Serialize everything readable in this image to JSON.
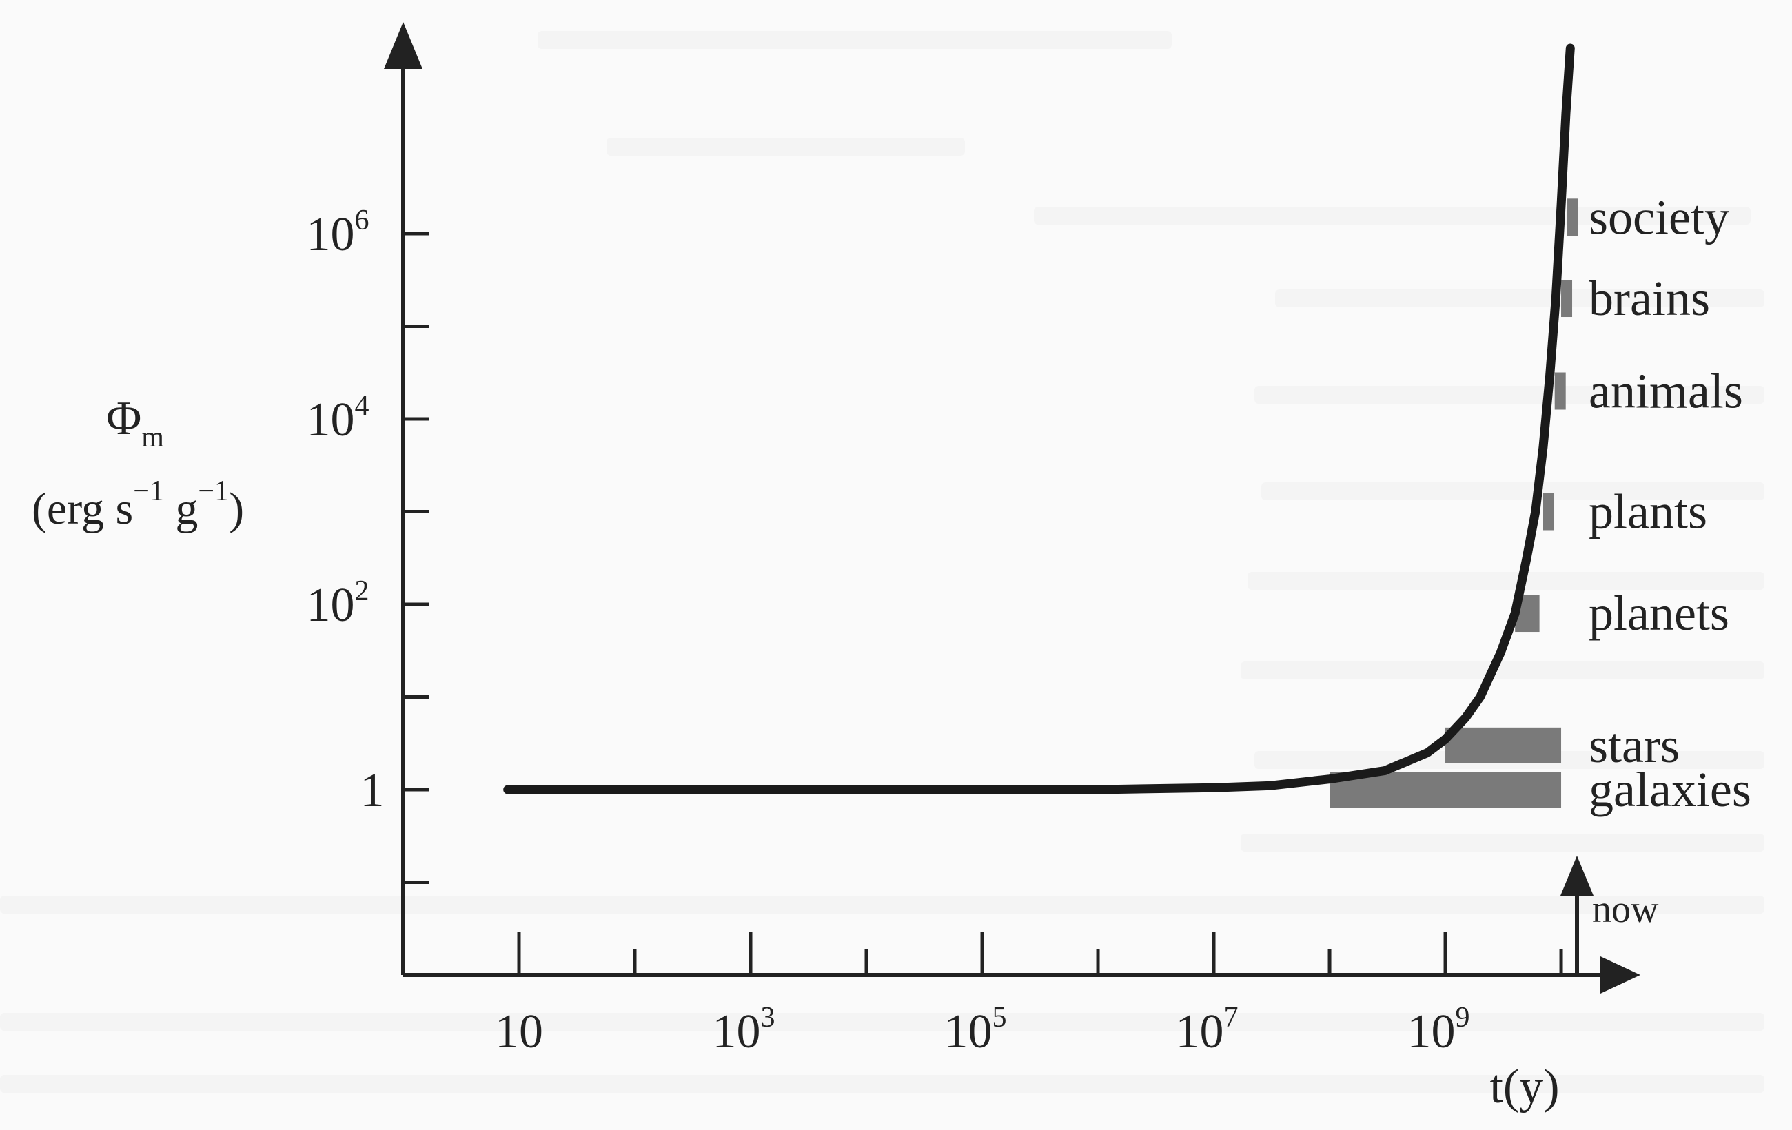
{
  "chart_data": {
    "type": "line",
    "title": "",
    "xlabel": "t(y)",
    "ylabel": "Φm",
    "ylabel_symbol": "Φ",
    "ylabel_subscript": "m",
    "yunit_parts": [
      "(erg s",
      "−1",
      " g",
      "−1",
      ")"
    ],
    "x_scale": "log",
    "y_scale": "log",
    "xlim": [
      1,
      13700000000
    ],
    "ylim": [
      0.01,
      100000000
    ],
    "x_ticks": [
      {
        "value": 10,
        "base": "10",
        "exp": ""
      },
      {
        "value": 1000,
        "base": "10",
        "exp": "3"
      },
      {
        "value": 100000,
        "base": "10",
        "exp": "5"
      },
      {
        "value": 10000000,
        "base": "10",
        "exp": "7"
      },
      {
        "value": 1000000000,
        "base": "10",
        "exp": "9"
      }
    ],
    "x_minor_ticks": [
      10,
      100,
      1000,
      10000,
      100000,
      1000000,
      10000000,
      100000000,
      1000000000,
      10000000000
    ],
    "y_ticks": [
      {
        "value": 1,
        "base": "1",
        "exp": ""
      },
      {
        "value": 100,
        "base": "10",
        "exp": "2"
      },
      {
        "value": 10000,
        "base": "10",
        "exp": "4"
      },
      {
        "value": 1000000,
        "base": "10",
        "exp": "6"
      }
    ],
    "y_minor_ticks": [
      0.1,
      1,
      10,
      100,
      1000,
      10000,
      100000,
      1000000
    ],
    "series": [
      {
        "name": "",
        "x": [
          8,
          100,
          1000,
          10000,
          100000,
          1000000,
          10000000,
          30000000,
          100000000,
          300000000,
          700000000,
          1000000000,
          1500000000,
          2000000000,
          3000000000,
          4000000000,
          5000000000,
          6000000000,
          7000000000,
          8000000000,
          9000000000,
          10000000000,
          11000000000,
          12000000000
        ],
        "y": [
          1,
          1,
          1,
          1,
          1,
          1,
          1.05,
          1.1,
          1.3,
          1.6,
          2.5,
          3.5,
          6,
          10,
          30,
          80,
          300,
          1000,
          5000,
          30000,
          200000,
          2000000,
          20000000,
          100000000
        ]
      }
    ],
    "markers": [
      {
        "label": "galaxies",
        "x_start": 100000000,
        "x_end": 10000000000,
        "y": 1
      },
      {
        "label": "stars",
        "x_start": 1000000000,
        "x_end": 10000000000,
        "y": 3
      },
      {
        "label": "planets",
        "x_start": 4000000000,
        "x_end": 6500000000,
        "y": 80
      },
      {
        "label": "plants",
        "x_start": 7000000000,
        "x_end": 8700000000,
        "y": 1000
      },
      {
        "label": "animals",
        "x_start": 8800000000,
        "x_end": 10000000000,
        "y": 20000
      },
      {
        "label": "brains",
        "x_start": 10000000000,
        "x_end": 10800000000,
        "y": 200000
      },
      {
        "label": "society",
        "x_start": 11300000000,
        "x_end": 11700000000,
        "y": 1500000
      }
    ],
    "now_marker": {
      "label": "now",
      "x": 13700000000
    },
    "grid": false,
    "legend": "none"
  }
}
